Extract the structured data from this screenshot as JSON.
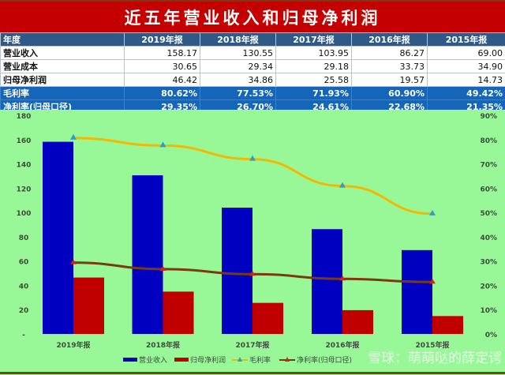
{
  "title": "近五年营业收入和归母净利润",
  "table": {
    "header": [
      "年度",
      "2019年报",
      "2018年报",
      "2017年报",
      "2016年报",
      "2015年报"
    ],
    "rows": [
      {
        "label": "营业收入",
        "values": [
          "158.17",
          "130.55",
          "103.95",
          "86.27",
          "69.00"
        ],
        "style": "white"
      },
      {
        "label": "营业成本",
        "values": [
          "30.65",
          "29.34",
          "29.18",
          "33.73",
          "34.90"
        ],
        "style": "white"
      },
      {
        "label": "归母净利润",
        "values": [
          "46.42",
          "34.86",
          "25.58",
          "19.57",
          "14.73"
        ],
        "style": "white"
      },
      {
        "label": "毛利率",
        "values": [
          "80.62%",
          "77.53%",
          "71.93%",
          "60.90%",
          "49.42%"
        ],
        "style": "blue"
      },
      {
        "label": "净利率(归母口径)",
        "values": [
          "29.35%",
          "26.70%",
          "24.61%",
          "22.68%",
          "21.35%"
        ],
        "style": "blue"
      }
    ]
  },
  "chart_data": {
    "type": "bar",
    "title": "",
    "categories": [
      "2019年报",
      "2018年报",
      "2017年报",
      "2016年报",
      "2015年报"
    ],
    "series": [
      {
        "name": "营业收入",
        "type": "bar",
        "axis": "left",
        "color": "#0000C0",
        "values": [
          158.17,
          130.55,
          103.95,
          86.27,
          69.0
        ]
      },
      {
        "name": "归母净利润",
        "type": "bar",
        "axis": "left",
        "color": "#C00000",
        "values": [
          46.42,
          34.86,
          25.58,
          19.57,
          14.73
        ]
      },
      {
        "name": "毛利率",
        "type": "line",
        "axis": "right",
        "color": "#F5B800",
        "marker_color": "#2E9FC0",
        "values": [
          80.62,
          77.53,
          71.93,
          60.9,
          49.42
        ]
      },
      {
        "name": "净利率(归母口径)",
        "type": "line",
        "axis": "right",
        "color": "#7A3A10",
        "marker_color": "#D02020",
        "values": [
          29.35,
          26.7,
          24.61,
          22.68,
          21.35
        ]
      }
    ],
    "left_axis": {
      "ticks": [
        "-",
        "20",
        "40",
        "60",
        "80",
        "100",
        "120",
        "140",
        "160",
        "180"
      ],
      "ylim": [
        0,
        180
      ]
    },
    "right_axis": {
      "ticks": [
        "0%",
        "10%",
        "20%",
        "30%",
        "40%",
        "50%",
        "60%",
        "70%",
        "80%",
        "90%"
      ],
      "ylim": [
        0,
        90
      ]
    },
    "grid": false,
    "legend_position": "bottom",
    "background": "#98F898"
  },
  "watermark": "雪球：萌萌哒的薛定谔"
}
